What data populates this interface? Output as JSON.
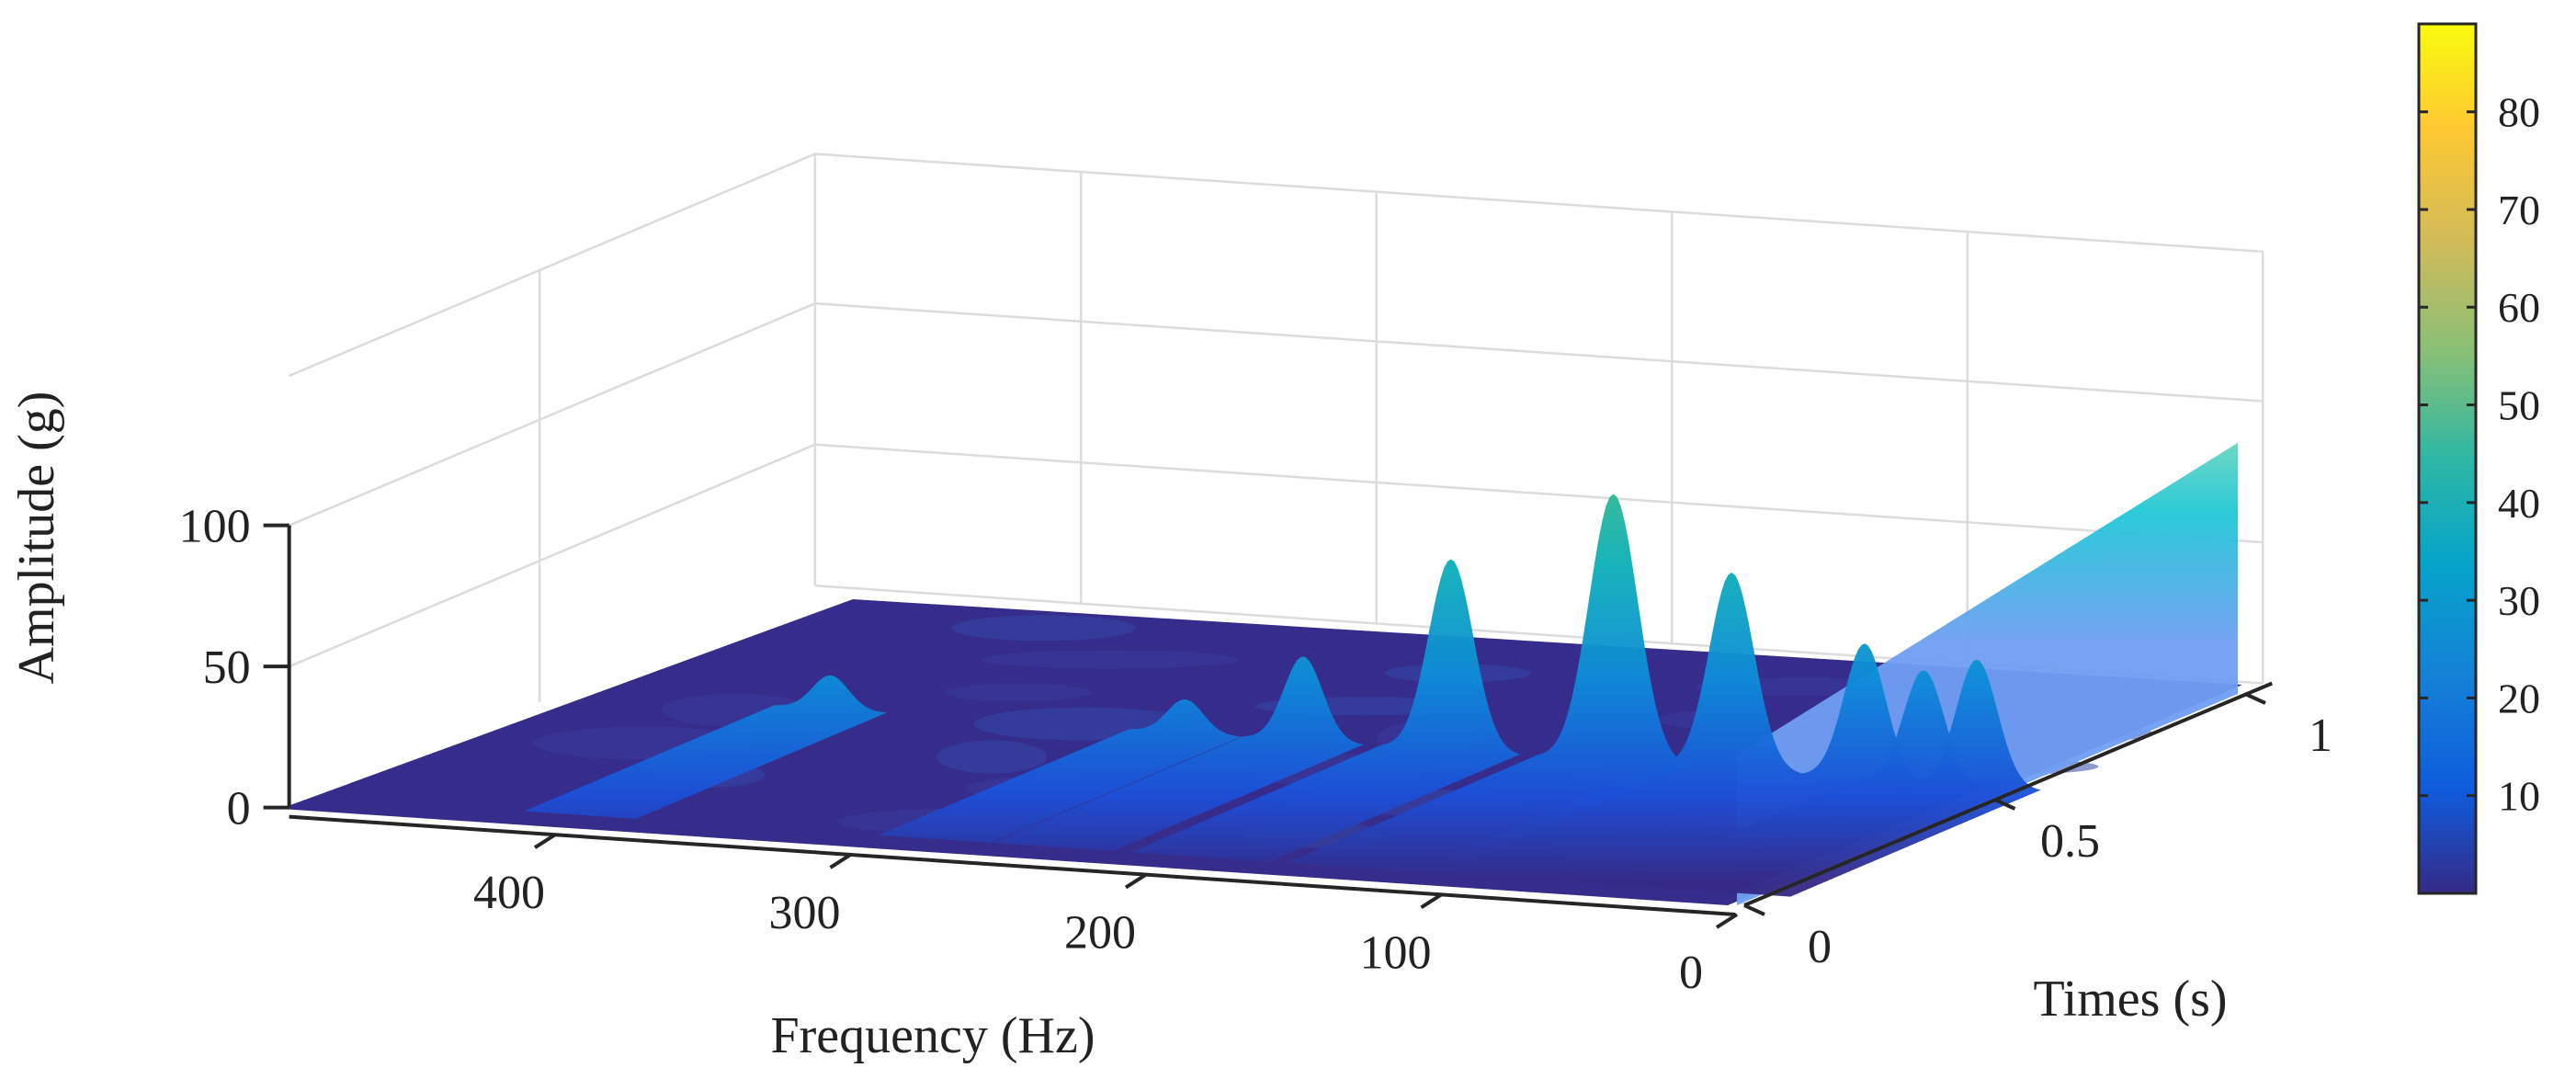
{
  "chart_data": {
    "type": "surface",
    "xlabel": "Frequency (Hz)",
    "ylabel": "Times (s)",
    "zlabel": "Amplitude (g)",
    "x_ticks": [
      "400",
      "300",
      "200",
      "100",
      "0"
    ],
    "y_ticks": [
      "0",
      "0.5",
      "1"
    ],
    "z_ticks": [
      "0",
      "50",
      "100"
    ],
    "xlim": [
      0,
      490
    ],
    "ylim": [
      0,
      1.05
    ],
    "zlim": [
      0,
      100
    ],
    "grid": true,
    "colormap": "parula",
    "colorbar": {
      "ticks": [
        "10",
        "20",
        "30",
        "40",
        "50",
        "60",
        "70",
        "80"
      ],
      "range": [
        0,
        89
      ]
    },
    "ridges": [
      {
        "frequency": 0,
        "amplitude": 89,
        "description_note": ""
      },
      {
        "frequency": 12,
        "amplitude": 45
      },
      {
        "frequency": 30,
        "amplitude": 40
      },
      {
        "frequency": 50,
        "amplitude": 48
      },
      {
        "frequency": 95,
        "amplitude": 70
      },
      {
        "frequency": 135,
        "amplitude": 95
      },
      {
        "frequency": 190,
        "amplitude": 68
      },
      {
        "frequency": 240,
        "amplitude": 30
      },
      {
        "frequency": 280,
        "amplitude": 12
      },
      {
        "frequency": 400,
        "amplitude": 12
      }
    ]
  }
}
